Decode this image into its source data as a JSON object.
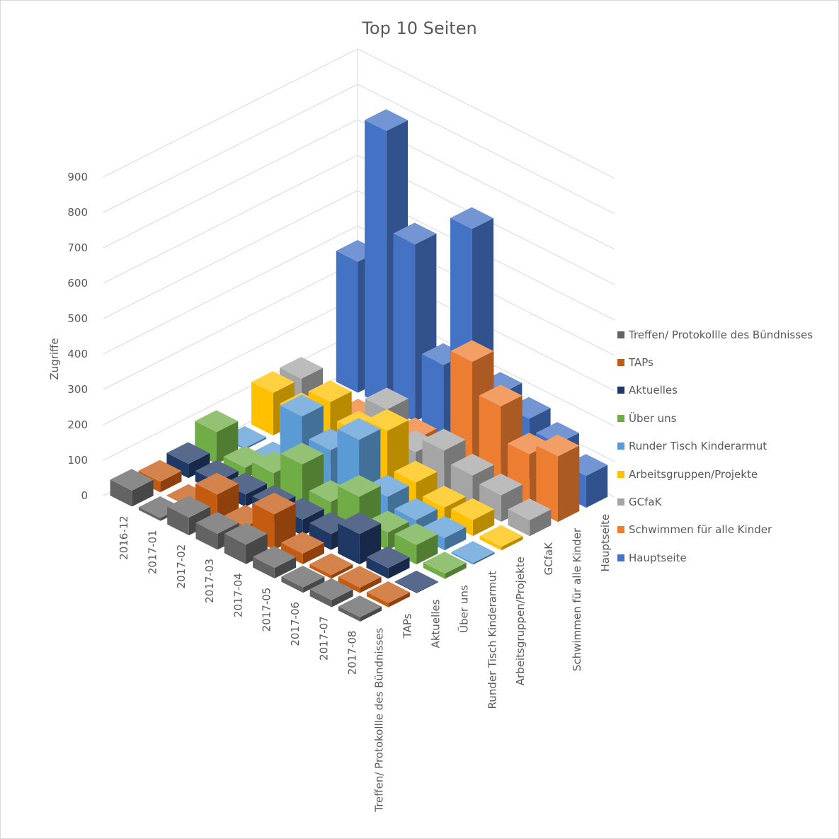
{
  "chart_data": {
    "type": "bar",
    "subtype": "3d-column",
    "title": "Top 10 Seiten",
    "ylabel": "Zugriffe",
    "ylim": [
      0,
      900
    ],
    "yticks": [
      0,
      100,
      200,
      300,
      400,
      500,
      600,
      700,
      800,
      900
    ],
    "grid": true,
    "legend_position": "right",
    "months": [
      "2016-12",
      "2017-01",
      "2017-02",
      "2017-03",
      "2017-04",
      "2017-05",
      "2017-06",
      "2017-07",
      "2017-08"
    ],
    "series": [
      {
        "name": "Treffen/ Protokollle des Bündnisses",
        "axis_label": "Treffen/ Protokollle des Bündnisses",
        "color": "#636363",
        "values": [
          45,
          8,
          50,
          45,
          55,
          30,
          15,
          20,
          12
        ]
      },
      {
        "name": "TAPs",
        "axis_label": "TAPs",
        "color": "#c55a11",
        "values": [
          30,
          0,
          75,
          25,
          100,
          30,
          10,
          15,
          12
        ]
      },
      {
        "name": "Aktuelles",
        "axis_label": "Aktuelles",
        "color": "#203864",
        "values": [
          40,
          30,
          35,
          40,
          45,
          45,
          85,
          30,
          0
        ]
      },
      {
        "name": "Über uns",
        "axis_label": "Über uns",
        "color": "#70ad47",
        "values": [
          90,
          30,
          55,
          120,
          55,
          110,
          50,
          55,
          15
        ]
      },
      {
        "name": "Runder Tisch Kinderarmut",
        "axis_label": "Runder Tisch Kinderarmut",
        "color": "#5b9bd5",
        "values": [
          5,
          0,
          175,
          120,
          190,
          70,
          45,
          35,
          5
        ]
      },
      {
        "name": "Arbeitsgruppen/Projekte",
        "axis_label": "Arbeitsgruppen/Projekte",
        "color": "#ffc000",
        "values": [
          120,
          100,
          175,
          130,
          175,
          70,
          40,
          45,
          10
        ]
      },
      {
        "name": "GCfaK",
        "axis_label": "GCfaK",
        "color": "#a5a5a5",
        "values": [
          120,
          40,
          40,
          155,
          75,
          120,
          90,
          75,
          45
        ]
      },
      {
        "name": "Schwimmen für alle Kinder",
        "axis_label": "Schwimmen für alle Kinder",
        "color": "#ed7d31",
        "values": [
          0,
          0,
          10,
          30,
          35,
          330,
          245,
          150,
          185
        ]
      },
      {
        "name": "Hauptseite",
        "axis_label": "Hauptseite",
        "color": "#4472c4",
        "values": [
          370,
          780,
          500,
          200,
          625,
          200,
          170,
          140,
          90
        ]
      }
    ]
  },
  "legend_order": [
    {
      "label": "Treffen/ Protokollle des Bündnisses",
      "color": "#636363"
    },
    {
      "label": "TAPs",
      "color": "#c55a11"
    },
    {
      "label": "Aktuelles",
      "color": "#203864"
    },
    {
      "label": "Über uns",
      "color": "#70ad47"
    },
    {
      "label": "Runder Tisch Kinderarmut",
      "color": "#5b9bd5"
    },
    {
      "label": "Arbeitsgruppen/Projekte",
      "color": "#ffc000"
    },
    {
      "label": "GCfaK",
      "color": "#a5a5a5"
    },
    {
      "label": "Schwimmen für alle Kinder",
      "color": "#ed7d31"
    },
    {
      "label": "Hauptseite",
      "color": "#4472c4"
    }
  ]
}
